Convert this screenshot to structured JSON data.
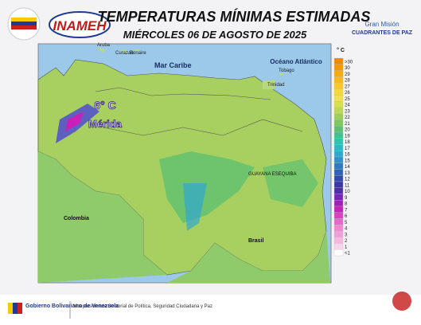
{
  "header": {
    "title": "TEMPERATURAS MÍNIMAS ESTIMADAS",
    "subtitle": "MIÉRCOLES 06 DE AGOSTO DE 2025",
    "logo_left": "INAMEH",
    "logo_right_top": "Gran Misión",
    "logo_right_bottom": "CUADRANTES DE PAZ"
  },
  "map": {
    "labels": {
      "sea": "Mar Caribe",
      "ocean": "Océano Atlántico",
      "colombia": "Colombia",
      "brasil": "Brasil",
      "esequiba": "GUAYANA ESEQUIBA",
      "aruba": "Aruba",
      "curazao": "Curazao",
      "bonaire": "Bonaire",
      "trinidad": "Trinidad",
      "tobago": "Tobago"
    },
    "highlight": {
      "value": "6° C",
      "place": "Mérida"
    }
  },
  "legend": {
    "unit": "° C",
    "items": [
      {
        "label": ">30",
        "color": "#ee8a00"
      },
      {
        "label": "30",
        "color": "#f29a00"
      },
      {
        "label": "29",
        "color": "#f5aa10"
      },
      {
        "label": "28",
        "color": "#f7b820"
      },
      {
        "label": "27",
        "color": "#f8c830"
      },
      {
        "label": "26",
        "color": "#f5d840"
      },
      {
        "label": "25",
        "color": "#eee050"
      },
      {
        "label": "24",
        "color": "#d8e050"
      },
      {
        "label": "23",
        "color": "#bcd855"
      },
      {
        "label": "22",
        "color": "#9ccf5a"
      },
      {
        "label": "21",
        "color": "#7ec860"
      },
      {
        "label": "20",
        "color": "#5ec070"
      },
      {
        "label": "19",
        "color": "#45c090"
      },
      {
        "label": "18",
        "color": "#35c0b0"
      },
      {
        "label": "17",
        "color": "#30b8c8"
      },
      {
        "label": "16",
        "color": "#30a8d0"
      },
      {
        "label": "15",
        "color": "#3090d0"
      },
      {
        "label": "14",
        "color": "#3078c8"
      },
      {
        "label": "13",
        "color": "#3060c0"
      },
      {
        "label": "12",
        "color": "#3048b0"
      },
      {
        "label": "11",
        "color": "#3838a0"
      },
      {
        "label": "10",
        "color": "#5030a0"
      },
      {
        "label": "9",
        "color": "#7828a8"
      },
      {
        "label": "8",
        "color": "#a020b0"
      },
      {
        "label": "7",
        "color": "#c820b8"
      },
      {
        "label": "6",
        "color": "#e040c0"
      },
      {
        "label": "5",
        "color": "#e868c8"
      },
      {
        "label": "4",
        "color": "#f088d0"
      },
      {
        "label": "3",
        "color": "#f0a0d8"
      },
      {
        "label": "2",
        "color": "#f4b8e0"
      },
      {
        "label": "1",
        "color": "#f8d4ea"
      },
      {
        "label": "<1",
        "color": "#ffffff"
      }
    ]
  },
  "footer": {
    "gov": "Gobierno Bolivariano de Venezuela",
    "office": "Vicepresidencia Sectorial de Política, Seguridad Ciudadana y Paz"
  }
}
